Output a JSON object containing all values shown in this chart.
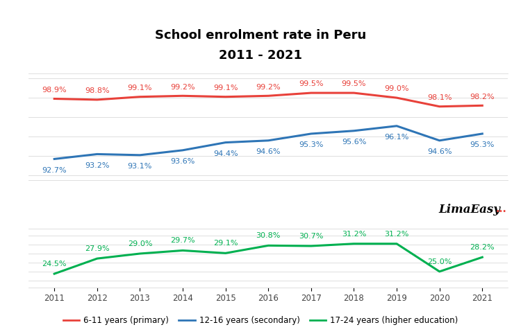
{
  "title_line1": "School enrolment rate in Peru",
  "title_line2": "2011 - 2021",
  "years": [
    2011,
    2012,
    2013,
    2014,
    2015,
    2016,
    2017,
    2018,
    2019,
    2020,
    2021
  ],
  "primary": [
    98.9,
    98.8,
    99.1,
    99.2,
    99.1,
    99.2,
    99.5,
    99.5,
    99.0,
    98.1,
    98.2
  ],
  "secondary": [
    92.7,
    93.2,
    93.1,
    93.6,
    94.4,
    94.6,
    95.3,
    95.6,
    96.1,
    94.6,
    95.3
  ],
  "higher": [
    24.5,
    27.9,
    29.0,
    29.7,
    29.1,
    30.8,
    30.7,
    31.2,
    31.2,
    25.0,
    28.2
  ],
  "primary_color": "#e8413a",
  "secondary_color": "#2e75b6",
  "higher_color": "#00b050",
  "background_color": "#ffffff",
  "legend_primary": "6-11 years (primary)",
  "legend_secondary": "12-16 years (secondary)",
  "legend_higher": "17-24 years (higher education)",
  "upper_panel_ylim": [
    90.5,
    101.5
  ],
  "lower_panel_ylim": [
    21.5,
    34.5
  ],
  "grid_color": "#d9d9d9",
  "label_fontsize": 8.0,
  "title_fontsize": 13,
  "linewidth": 2.2
}
